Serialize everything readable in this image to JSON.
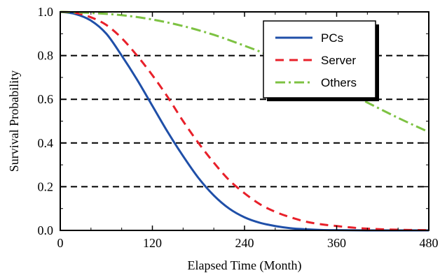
{
  "chart_data": {
    "type": "line",
    "xlabel": "Elapsed Time (Month)",
    "ylabel": "Survival Probability",
    "xlim": [
      0,
      480
    ],
    "ylim": [
      0.0,
      1.0
    ],
    "xticks": [
      0,
      120,
      240,
      360,
      480
    ],
    "yticks": [
      0.0,
      0.2,
      0.4,
      0.6,
      0.8,
      1.0
    ],
    "xtick_labels": [
      "0",
      "120",
      "240",
      "360",
      "480"
    ],
    "ytick_labels": [
      "0.0",
      "0.2",
      "0.4",
      "0.6",
      "0.8",
      "1.0"
    ],
    "grid": "horizontal dashed at 0.2, 0.4, 0.6, 0.8",
    "legend_position": "top-right",
    "series": [
      {
        "name": "PCs",
        "color": "#1f4fa8",
        "style": "solid",
        "x": [
          0,
          20,
          40,
          60,
          80,
          100,
          120,
          140,
          160,
          180,
          200,
          220,
          240,
          260,
          280,
          300,
          320,
          340,
          360,
          400,
          440,
          480
        ],
        "y": [
          1.0,
          0.99,
          0.96,
          0.9,
          0.8,
          0.69,
          0.57,
          0.45,
          0.34,
          0.24,
          0.16,
          0.1,
          0.06,
          0.035,
          0.02,
          0.01,
          0.005,
          0.002,
          0.001,
          0.0,
          0.0,
          0.0
        ]
      },
      {
        "name": "Server",
        "color": "#e8202a",
        "style": "dashed",
        "x": [
          0,
          20,
          40,
          60,
          80,
          100,
          120,
          140,
          160,
          180,
          200,
          220,
          240,
          260,
          280,
          300,
          320,
          340,
          360,
          380,
          400,
          440,
          480
        ],
        "y": [
          1.0,
          0.995,
          0.975,
          0.94,
          0.88,
          0.8,
          0.71,
          0.61,
          0.5,
          0.4,
          0.31,
          0.23,
          0.17,
          0.12,
          0.085,
          0.06,
          0.04,
          0.028,
          0.02,
          0.013,
          0.008,
          0.003,
          0.001
        ]
      },
      {
        "name": "Others",
        "color": "#7dc242",
        "style": "dash-dot",
        "x": [
          0,
          40,
          80,
          120,
          160,
          200,
          240,
          280,
          320,
          360,
          400,
          440,
          480
        ],
        "y": [
          1.0,
          0.995,
          0.985,
          0.965,
          0.935,
          0.895,
          0.845,
          0.79,
          0.725,
          0.655,
          0.585,
          0.515,
          0.45
        ]
      }
    ]
  }
}
